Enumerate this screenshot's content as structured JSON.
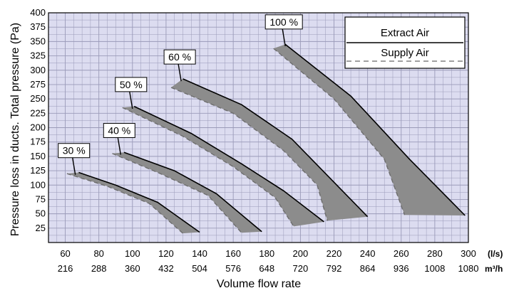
{
  "chart_data": {
    "type": "area",
    "xlabel": "Volume flow rate",
    "ylabel": "Pressure loss in ducts. Total pressure (Pa)",
    "x_unit": "(l/s)",
    "x2_unit": "m³/h",
    "xlim": [
      50,
      300
    ],
    "ylim": [
      0,
      400
    ],
    "x_ticks": [
      60,
      80,
      100,
      120,
      140,
      160,
      180,
      200,
      220,
      240,
      260,
      280,
      300
    ],
    "x2_ticks": [
      "216",
      "288",
      "360",
      "432",
      "504",
      "576",
      "648",
      "720",
      "792",
      "864",
      "936",
      "1008",
      "1080"
    ],
    "y_ticks": [
      25,
      50,
      75,
      100,
      125,
      150,
      175,
      200,
      225,
      250,
      275,
      300,
      325,
      350,
      375,
      400
    ],
    "grid": true,
    "legend": {
      "position": "top-right",
      "entries": [
        {
          "name": "Extract Air",
          "style": "solid",
          "color": "#000000"
        },
        {
          "name": "Supply Air",
          "style": "dashed",
          "color": "#808080"
        }
      ]
    },
    "fill_color": "#8c8c8c",
    "grid_bg": "#dcdcf0",
    "series": [
      {
        "label": "30 %",
        "extract": [
          [
            68,
            122
          ],
          [
            90,
            100
          ],
          [
            115,
            70
          ],
          [
            140,
            18
          ]
        ],
        "supply": [
          [
            61,
            120
          ],
          [
            85,
            98
          ],
          [
            110,
            68
          ],
          [
            130,
            16
          ]
        ],
        "callout_at": [
          66,
          118
        ]
      },
      {
        "label": "40 %",
        "extract": [
          [
            95,
            157
          ],
          [
            125,
            125
          ],
          [
            150,
            85
          ],
          [
            177,
            19
          ]
        ],
        "supply": [
          [
            88,
            155
          ],
          [
            115,
            122
          ],
          [
            145,
            82
          ],
          [
            165,
            17
          ]
        ],
        "callout_at": [
          93,
          153
        ]
      },
      {
        "label": "50 %",
        "extract": [
          [
            101,
            237
          ],
          [
            135,
            190
          ],
          [
            165,
            137
          ],
          [
            190,
            90
          ],
          [
            214,
            36
          ]
        ],
        "supply": [
          [
            94,
            235
          ],
          [
            130,
            185
          ],
          [
            160,
            132
          ],
          [
            185,
            78
          ],
          [
            196,
            28
          ]
        ],
        "callout_at": [
          100,
          233
        ]
      },
      {
        "label": "60 %",
        "extract": [
          [
            130,
            285
          ],
          [
            165,
            240
          ],
          [
            195,
            180
          ],
          [
            240,
            45
          ]
        ],
        "supply": [
          [
            123,
            270
          ],
          [
            160,
            225
          ],
          [
            190,
            160
          ],
          [
            210,
            100
          ],
          [
            216,
            38
          ]
        ],
        "callout_at": [
          129,
          281
        ]
      },
      {
        "label": "100 %",
        "extract": [
          [
            191,
            345
          ],
          [
            230,
            255
          ],
          [
            265,
            145
          ],
          [
            298,
            47
          ]
        ],
        "supply": [
          [
            184,
            338
          ],
          [
            220,
            250
          ],
          [
            250,
            145
          ],
          [
            262,
            48
          ]
        ],
        "callout_at": [
          191,
          342
        ]
      }
    ]
  }
}
